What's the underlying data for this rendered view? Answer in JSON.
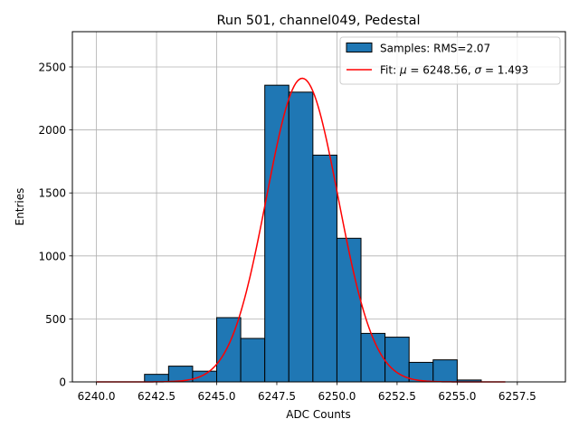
{
  "chart_data": {
    "type": "bar",
    "title": "Run 501, channel049, Pedestal",
    "xlabel": "ADC Counts",
    "ylabel": "Entries",
    "xlim": [
      6239.0,
      6259.5
    ],
    "ylim": [
      0,
      2780
    ],
    "xticks": [
      6240.0,
      6242.5,
      6245.0,
      6247.5,
      6250.0,
      6252.5,
      6255.0,
      6257.5
    ],
    "xtick_labels": [
      "6240.0",
      "6242.5",
      "6245.0",
      "6247.5",
      "6250.0",
      "6252.5",
      "6255.0",
      "6257.5"
    ],
    "yticks": [
      0,
      500,
      1000,
      1500,
      2000,
      2500
    ],
    "ytick_labels": [
      "0",
      "500",
      "1000",
      "1500",
      "2000",
      "2500"
    ],
    "grid": true,
    "legend_position": "top-right",
    "histogram": {
      "name": "Samples: RMS=2.07",
      "color": "#1f77b4",
      "edgecolor": "#000000",
      "bins": [
        {
          "x0": 6240.0,
          "x1": 6241.0,
          "value": 0
        },
        {
          "x0": 6241.0,
          "x1": 6242.0,
          "value": 0
        },
        {
          "x0": 6242.0,
          "x1": 6243.0,
          "value": 60
        },
        {
          "x0": 6243.0,
          "x1": 6244.0,
          "value": 125
        },
        {
          "x0": 6244.0,
          "x1": 6245.0,
          "value": 85
        },
        {
          "x0": 6245.0,
          "x1": 6246.0,
          "value": 510
        },
        {
          "x0": 6246.0,
          "x1": 6247.0,
          "value": 345
        },
        {
          "x0": 6247.0,
          "x1": 6248.0,
          "value": 2355
        },
        {
          "x0": 6248.0,
          "x1": 6249.0,
          "value": 2300
        },
        {
          "x0": 6249.0,
          "x1": 6250.0,
          "value": 1800
        },
        {
          "x0": 6250.0,
          "x1": 6251.0,
          "value": 1140
        },
        {
          "x0": 6251.0,
          "x1": 6252.0,
          "value": 385
        },
        {
          "x0": 6252.0,
          "x1": 6253.0,
          "value": 355
        },
        {
          "x0": 6253.0,
          "x1": 6254.0,
          "value": 155
        },
        {
          "x0": 6254.0,
          "x1": 6255.0,
          "value": 175
        },
        {
          "x0": 6255.0,
          "x1": 6256.0,
          "value": 15
        },
        {
          "x0": 6256.0,
          "x1": 6257.0,
          "value": 0
        },
        {
          "x0": 6257.0,
          "x1": 6258.0,
          "value": 0
        },
        {
          "x0": 6258.0,
          "x1": 6259.0,
          "value": 0
        }
      ]
    },
    "fit": {
      "type": "line",
      "name": "Fit: μ = 6248.56, σ = 1.493",
      "legend_prefix": "Fit: ",
      "mu_symbol": "μ",
      "mu_text": " = 6248.56, ",
      "sigma_symbol": "σ",
      "sigma_text": " = 1.493",
      "color": "#ff0000",
      "mu": 6248.56,
      "sigma": 1.493,
      "amplitude": 2410,
      "x_range": [
        6240.0,
        6257.0
      ]
    }
  }
}
